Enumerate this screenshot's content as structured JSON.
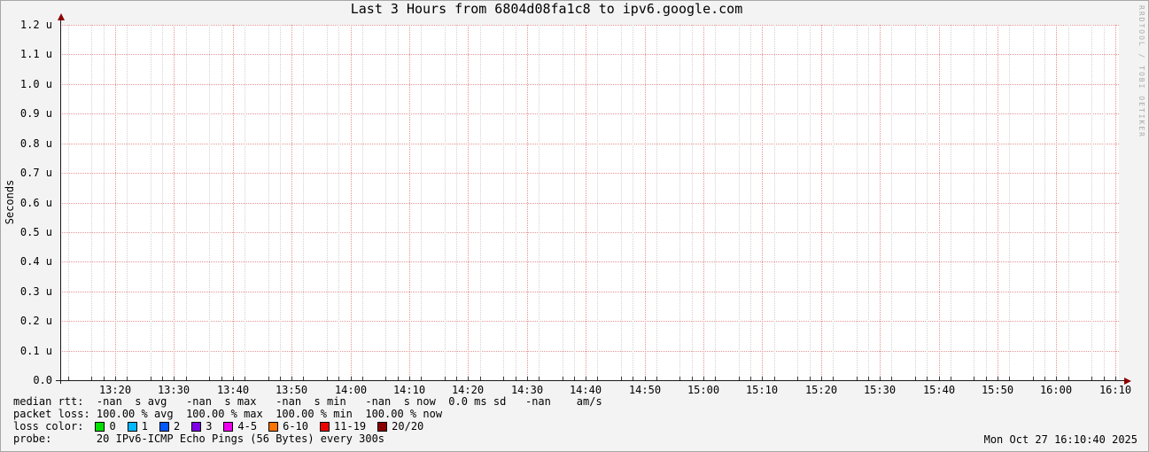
{
  "title": "Last 3 Hours from 6804d08fa1c8 to ipv6.google.com",
  "watermark": "RRDTOOL / TOBI OETIKER",
  "chart_data": {
    "type": "line",
    "title": "Last 3 Hours from 6804d08fa1c8 to ipv6.google.com",
    "xlabel": "",
    "ylabel": "Seconds",
    "y_unit": "u",
    "ylim": [
      0.0,
      1.2
    ],
    "y_tick_labels": [
      "0.0",
      "0.1 u",
      "0.2 u",
      "0.3 u",
      "0.4 u",
      "0.5 u",
      "0.6 u",
      "0.7 u",
      "0.8 u",
      "0.9 u",
      "1.0 u",
      "1.1 u",
      "1.2 u"
    ],
    "x_tick_labels": [
      "13:20",
      "13:30",
      "13:40",
      "13:50",
      "14:00",
      "14:10",
      "14:20",
      "14:30",
      "14:40",
      "14:50",
      "15:00",
      "15:10",
      "15:20",
      "15:30",
      "15:40",
      "15:50",
      "16:00",
      "16:10"
    ],
    "x_minor_ticks_per_interval": 5,
    "grid": true,
    "legend_position": "below",
    "series": []
  },
  "legend": {
    "median_rtt": "median rtt:  -nan  s avg   -nan  s max   -nan  s min   -nan  s now  0.0 ms sd   -nan    am/s",
    "packet_loss": "packet loss: 100.00 % avg  100.00 % max  100.00 % min  100.00 % now",
    "loss_color_label": "loss color:",
    "loss_colors": [
      {
        "label": "0",
        "color": "#00e000"
      },
      {
        "label": "1",
        "color": "#00b8ff"
      },
      {
        "label": "2",
        "color": "#0059ff"
      },
      {
        "label": "3",
        "color": "#7e00e6"
      },
      {
        "label": "4-5",
        "color": "#ee00ee"
      },
      {
        "label": "6-10",
        "color": "#ff7300"
      },
      {
        "label": "11-19",
        "color": "#ee0000"
      },
      {
        "label": "20/20",
        "color": "#8b0000"
      }
    ],
    "probe": "probe:       20 IPv6-ICMP Echo Pings (56 Bytes) every 300s",
    "timestamp": "Mon Oct 27 16:10:40 2025"
  },
  "colors": {
    "page_bg": "#f3f3f3",
    "plot_bg": "#ffffff",
    "grid_major": "#e49595",
    "grid_minor": "#d2d2d2",
    "axis": "#1a1a1a",
    "arrow": "#8b0000",
    "watermark": "#aaaaaa"
  }
}
